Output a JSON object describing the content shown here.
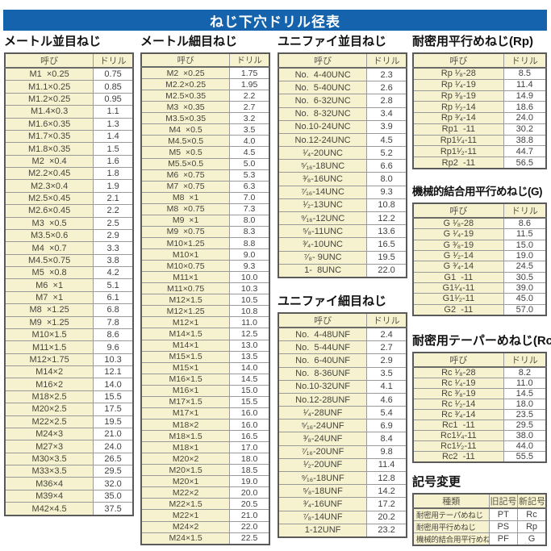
{
  "page": {
    "title": "ねじ下穴ドリル径表",
    "footer_mark": "--"
  },
  "colors": {
    "banner_blue": "#1563ac",
    "cell_yellow": "#f6f2d0",
    "grid_gray": "#9a9a98",
    "outer_border": "#5a5a5a"
  },
  "sections": {
    "metric_coarse": {
      "title": "メートル並目ねじ",
      "headers": [
        "呼び",
        "ドリル"
      ],
      "rows": [
        [
          "M1  ×0.25",
          "0.75"
        ],
        [
          "M1.1×0.25",
          "0.85"
        ],
        [
          "M1.2×0.25",
          "0.95"
        ],
        [
          "M1.4×0.3",
          "1.1"
        ],
        [
          "M1.6×0.35",
          "1.3"
        ],
        [
          "M1.7×0.35",
          "1.4"
        ],
        [
          "M1.8×0.35",
          "1.5"
        ],
        [
          "M2  ×0.4",
          "1.6"
        ],
        [
          "M2.2×0.45",
          "1.8"
        ],
        [
          "M2.3×0.4",
          "1.9"
        ],
        [
          "M2.5×0.45",
          "2.1"
        ],
        [
          "M2.6×0.45",
          "2.2"
        ],
        [
          "M3  ×0.5",
          "2.5"
        ],
        [
          "M3.5×0.6",
          "2.9"
        ],
        [
          "M4  ×0.7",
          "3.3"
        ],
        [
          "M4.5×0.75",
          "3.8"
        ],
        [
          "M5  ×0.8",
          "4.2"
        ],
        [
          "M6  ×1",
          "5.1"
        ],
        [
          "M7  ×1",
          "6.1"
        ],
        [
          "M8  ×1.25",
          "6.8"
        ],
        [
          "M9  ×1.25",
          "7.8"
        ],
        [
          "M10×1.5",
          "8.6"
        ],
        [
          "M11×1.5",
          "9.6"
        ],
        [
          "M12×1.75",
          "10.3"
        ],
        [
          "M14×2",
          "12.1"
        ],
        [
          "M16×2",
          "14.0"
        ],
        [
          "M18×2.5",
          "15.5"
        ],
        [
          "M20×2.5",
          "17.5"
        ],
        [
          "M22×2.5",
          "19.5"
        ],
        [
          "M24×3",
          "21.0"
        ],
        [
          "M27×3",
          "24.0"
        ],
        [
          "M30×3.5",
          "26.5"
        ],
        [
          "M33×3.5",
          "29.5"
        ],
        [
          "M36×4",
          "32.0"
        ],
        [
          "M39×4",
          "35.0"
        ],
        [
          "M42×4.5",
          "37.5"
        ]
      ]
    },
    "metric_fine": {
      "title": "メートル細目ねじ",
      "headers": [
        "呼び",
        "ドリル"
      ],
      "rows": [
        [
          "M2  ×0.25",
          "1.75"
        ],
        [
          "M2.2×0.25",
          "1.95"
        ],
        [
          "M2.5×0.35",
          "2.2"
        ],
        [
          "M3  ×0.35",
          "2.7"
        ],
        [
          "M3.5×0.35",
          "3.2"
        ],
        [
          "M4  ×0.5",
          "3.5"
        ],
        [
          "M4.5×0.5",
          "4.0"
        ],
        [
          "M5  ×0.5",
          "4.5"
        ],
        [
          "M5.5×0.5",
          "5.0"
        ],
        [
          "M6  ×0.75",
          "5.3"
        ],
        [
          "M7  ×0.75",
          "6.3"
        ],
        [
          "M8  ×1",
          "7.0"
        ],
        [
          "M8  ×0.75",
          "7.3"
        ],
        [
          "M9  ×1",
          "8.0"
        ],
        [
          "M9  ×0.75",
          "8.3"
        ],
        [
          "M10×1.25",
          "8.8"
        ],
        [
          "M10×1",
          "9.0"
        ],
        [
          "M10×0.75",
          "9.3"
        ],
        [
          "M11×1",
          "10.0"
        ],
        [
          "M11×0.75",
          "10.3"
        ],
        [
          "M12×1.5",
          "10.5"
        ],
        [
          "M12×1.25",
          "10.8"
        ],
        [
          "M12×1",
          "11.0"
        ],
        [
          "M14×1.5",
          "12.5"
        ],
        [
          "M14×1",
          "13.0"
        ],
        [
          "M15×1.5",
          "13.5"
        ],
        [
          "M15×1",
          "14.0"
        ],
        [
          "M16×1.5",
          "14.5"
        ],
        [
          "M16×1",
          "15.0"
        ],
        [
          "M17×1.5",
          "15.5"
        ],
        [
          "M17×1",
          "16.0"
        ],
        [
          "M18×2",
          "16.0"
        ],
        [
          "M18×1.5",
          "16.5"
        ],
        [
          "M18×1",
          "17.0"
        ],
        [
          "M20×2",
          "18.0"
        ],
        [
          "M20×1.5",
          "18.5"
        ],
        [
          "M20×1",
          "19.0"
        ],
        [
          "M22×2",
          "20.0"
        ],
        [
          "M22×1.5",
          "20.5"
        ],
        [
          "M22×1",
          "21.0"
        ],
        [
          "M24×2",
          "22.0"
        ],
        [
          "M24×1.5",
          "22.5"
        ]
      ]
    },
    "unified_coarse": {
      "title": "ユニファイ並目ねじ",
      "headers": [
        "呼び",
        "ドリル"
      ],
      "rows": [
        [
          "No.  4-40UNC",
          "2.3"
        ],
        [
          "No.  5-40UNC",
          "2.6"
        ],
        [
          "No.  6-32UNC",
          "2.8"
        ],
        [
          "No.  8-32UNC",
          "3.4"
        ],
        [
          "No.10-24UNC",
          "3.9"
        ],
        [
          "No.12-24UNC",
          "4.5"
        ],
        [
          "¹⁄₄-20UNC",
          "5.2"
        ],
        [
          "⁵⁄₁₆-18UNC",
          "6.6"
        ],
        [
          "³⁄₈-16UNC",
          "8.0"
        ],
        [
          "⁷⁄₁₆-14UNC",
          "9.3"
        ],
        [
          "¹⁄₂-13UNC",
          "10.8"
        ],
        [
          "⁹⁄₁₆-12UNC",
          "12.2"
        ],
        [
          "⁵⁄₈-11UNC",
          "13.6"
        ],
        [
          "³⁄₄-10UNC",
          "16.5"
        ],
        [
          "⁷⁄₈- 9UNC",
          "19.5"
        ],
        [
          "1-  8UNC",
          "22.0"
        ]
      ]
    },
    "unified_fine": {
      "title": "ユニファイ細目ねじ",
      "headers": [
        "呼び",
        "ドリル"
      ],
      "rows": [
        [
          "No.  4-48UNF",
          "2.4"
        ],
        [
          "No.  5-44UNF",
          "2.7"
        ],
        [
          "No.  6-40UNF",
          "2.9"
        ],
        [
          "No.  8-36UNF",
          "3.5"
        ],
        [
          "No.10-32UNF",
          "4.1"
        ],
        [
          "No.12-28UNF",
          "4.6"
        ],
        [
          "¹⁄₄-28UNF",
          "5.4"
        ],
        [
          "⁵⁄₁₆-24UNF",
          "6.9"
        ],
        [
          "³⁄₈-24UNF",
          "8.4"
        ],
        [
          "⁷⁄₁₆-20UNF",
          "9.8"
        ],
        [
          "¹⁄₂-20UNF",
          "11.4"
        ],
        [
          "⁹⁄₁₆-18UNF",
          "12.8"
        ],
        [
          "⁵⁄₈-18UNF",
          "14.2"
        ],
        [
          "³⁄₄-16UNF",
          "17.2"
        ],
        [
          "⁷⁄₈-14UNF",
          "20.2"
        ],
        [
          "1-12UNF",
          "23.2"
        ]
      ]
    },
    "rp": {
      "title": "耐密用平行めねじ(Rp)",
      "headers": [
        "呼び",
        "ドリル"
      ],
      "rows": [
        [
          "Rp ¹⁄₈-28",
          "8.5"
        ],
        [
          "Rp ¹⁄₄-19",
          "11.4"
        ],
        [
          "Rp ³⁄₈-19",
          "14.9"
        ],
        [
          "Rp ¹⁄₂-14",
          "18.6"
        ],
        [
          "Rp ³⁄₄-14",
          "24.0"
        ],
        [
          "Rp1  -11",
          "30.2"
        ],
        [
          "Rp1¹⁄₄-11",
          "38.8"
        ],
        [
          "Rp1¹⁄₂-11",
          "44.7"
        ],
        [
          "Rp2  -11",
          "56.5"
        ]
      ]
    },
    "g": {
      "title": "機械的結合用平行めねじ(G)",
      "headers": [
        "呼び",
        "ドリル"
      ],
      "rows": [
        [
          "G ¹⁄₈-28",
          "8.6"
        ],
        [
          "G ¹⁄₄-19",
          "11.5"
        ],
        [
          "G ³⁄₈-19",
          "15.0"
        ],
        [
          "G ¹⁄₂-14",
          "19.0"
        ],
        [
          "G ³⁄₄-14",
          "24.5"
        ],
        [
          "G1  -11",
          "30.5"
        ],
        [
          "G1¹⁄₄-11",
          "39.0"
        ],
        [
          "G1¹⁄₂-11",
          "45.0"
        ],
        [
          "G2  -11",
          "57.0"
        ]
      ]
    },
    "rc": {
      "title": "耐密用テーパーめねじ(Rc)",
      "headers": [
        "呼び",
        "ドリル"
      ],
      "rows": [
        [
          "Rc ¹⁄₈-28",
          "8.2"
        ],
        [
          "Rc ¹⁄₄-19",
          "11.0"
        ],
        [
          "Rc ³⁄₈-19",
          "14.5"
        ],
        [
          "Rc ¹⁄₂-14",
          "18.0"
        ],
        [
          "Rc ³⁄₄-14",
          "23.5"
        ],
        [
          "Rc1  -11",
          "29.5"
        ],
        [
          "Rc1¹⁄₄-11",
          "38.0"
        ],
        [
          "Rc1¹⁄₂-11",
          "44.0"
        ],
        [
          "Rc2  -11",
          "55.5"
        ]
      ]
    },
    "symbol_change": {
      "title": "記号変更",
      "headers": [
        "種類",
        "旧記号",
        "新記号"
      ],
      "rows": [
        [
          "耐密用テーパめねじ",
          "PT",
          "Rc"
        ],
        [
          "耐密用平行めねじ",
          "PS",
          "Rp"
        ],
        [
          "機械的結合用平行めねじ",
          "PF",
          "G"
        ]
      ]
    }
  }
}
